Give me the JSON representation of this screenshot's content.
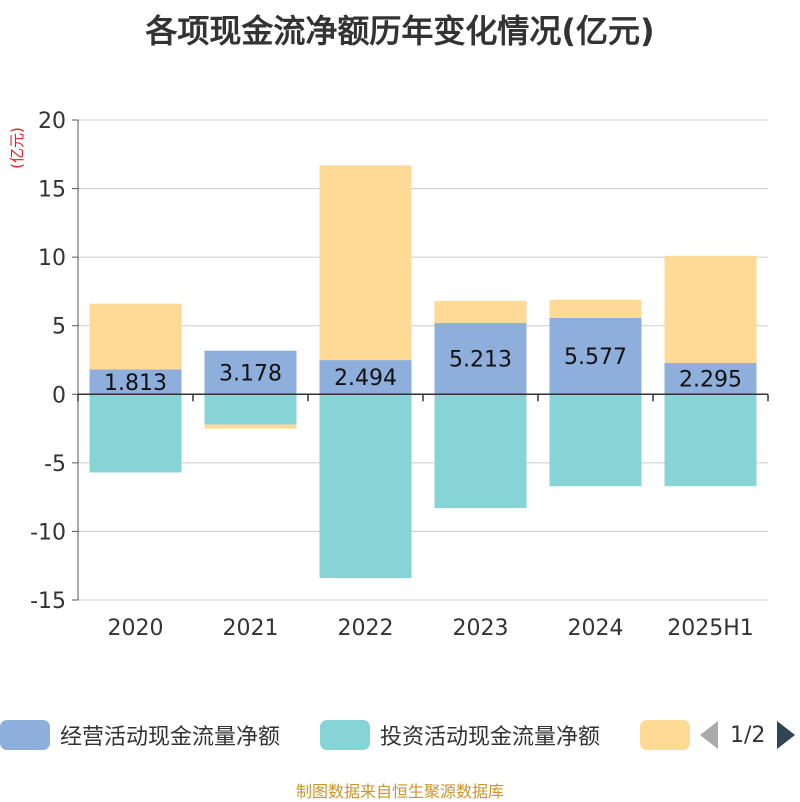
{
  "title": "各项现金流净额历年变化情况(亿元)",
  "source": "制图数据来自恒生聚源数据库",
  "pager": "1/2",
  "chart_data": {
    "type": "bar",
    "stacked": true,
    "title": "各项现金流净额历年变化情况(亿元)",
    "ylabel": "(亿元)",
    "ylim": [
      -15,
      20
    ],
    "yticks": [
      -15,
      -10,
      -5,
      0,
      5,
      10,
      15,
      20
    ],
    "grid": true,
    "legend_position": "bottom",
    "categories": [
      "2020",
      "2021",
      "2022",
      "2023",
      "2024",
      "2025H1"
    ],
    "series": [
      {
        "name": "经营活动现金流量净额",
        "color": "#8eaedb",
        "values": [
          1.813,
          3.178,
          2.494,
          5.213,
          5.577,
          2.295
        ],
        "labels": [
          "1.813",
          "3.178",
          "2.494",
          "5.213",
          "5.577",
          "2.295"
        ]
      },
      {
        "name": "投资活动现金流量净额",
        "color": "#86d4d6",
        "values": [
          -5.7,
          -2.2,
          -13.4,
          -8.3,
          -6.7,
          -6.7
        ]
      },
      {
        "name": "",
        "color": "#ffd996",
        "values": [
          4.8,
          -0.3,
          14.2,
          1.6,
          1.3,
          7.8
        ]
      }
    ]
  }
}
